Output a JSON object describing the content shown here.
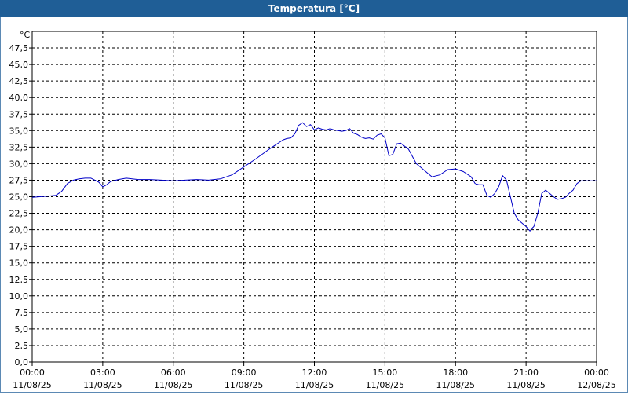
{
  "window": {
    "title": "Temperatura [°C]"
  },
  "chart_data": {
    "type": "line",
    "title": "Temperatura [°C]",
    "ylabel": "°C",
    "xlabel": "",
    "ylim": [
      0,
      50
    ],
    "y_ticks": [
      "0,0",
      "2,5",
      "5,0",
      "7,5",
      "10,0",
      "12,5",
      "15,0",
      "17,5",
      "20,0",
      "22,5",
      "25,0",
      "27,5",
      "30,0",
      "32,5",
      "35,0",
      "37,5",
      "40,0",
      "42,5",
      "45,0",
      "47,5"
    ],
    "x_ticks": [
      {
        "time": "00:00",
        "date": "11/08/25"
      },
      {
        "time": "03:00",
        "date": "11/08/25"
      },
      {
        "time": "06:00",
        "date": "11/08/25"
      },
      {
        "time": "09:00",
        "date": "11/08/25"
      },
      {
        "time": "12:00",
        "date": "11/08/25"
      },
      {
        "time": "15:00",
        "date": "11/08/25"
      },
      {
        "time": "18:00",
        "date": "11/08/25"
      },
      {
        "time": "21:00",
        "date": "11/08/25"
      },
      {
        "time": "00:00",
        "date": "12/08/25"
      }
    ],
    "grid": true,
    "series": [
      {
        "color": "#0000c8",
        "x": [
          "00:00",
          "00:20",
          "00:40",
          "01:00",
          "01:15",
          "01:30",
          "01:45",
          "02:00",
          "02:15",
          "02:30",
          "02:40",
          "02:50",
          "03:00",
          "03:10",
          "03:20",
          "03:40",
          "04:00",
          "04:30",
          "05:00",
          "05:30",
          "06:00",
          "06:30",
          "07:00",
          "07:30",
          "08:00",
          "08:30",
          "09:00",
          "09:30",
          "10:00",
          "10:20",
          "10:30",
          "10:40",
          "10:50",
          "11:00",
          "11:10",
          "11:20",
          "11:30",
          "11:40",
          "11:50",
          "12:00",
          "12:10",
          "12:20",
          "12:30",
          "12:40",
          "12:50",
          "13:00",
          "13:10",
          "13:20",
          "13:30",
          "13:40",
          "13:50",
          "14:00",
          "14:10",
          "14:20",
          "14:30",
          "14:40",
          "14:50",
          "15:00",
          "15:10",
          "15:20",
          "15:30",
          "15:40",
          "16:00",
          "16:20",
          "16:40",
          "17:00",
          "17:20",
          "17:40",
          "18:00",
          "18:20",
          "18:40",
          "18:50",
          "19:00",
          "19:10",
          "19:20",
          "19:30",
          "19:40",
          "19:50",
          "20:00",
          "20:10",
          "20:20",
          "20:30",
          "20:40",
          "20:50",
          "21:00",
          "21:10",
          "21:15",
          "21:20",
          "21:30",
          "21:40",
          "21:50",
          "22:00",
          "22:10",
          "22:20",
          "22:30",
          "22:40",
          "22:50",
          "23:00",
          "23:10",
          "23:20",
          "23:40",
          "24:00"
        ],
        "y": [
          24.9,
          25.0,
          25.1,
          25.2,
          25.8,
          27.0,
          27.5,
          27.7,
          27.8,
          27.8,
          27.5,
          27.2,
          26.5,
          26.8,
          27.3,
          27.6,
          27.8,
          27.6,
          27.6,
          27.5,
          27.4,
          27.5,
          27.6,
          27.5,
          27.7,
          28.3,
          29.5,
          30.7,
          32.0,
          32.8,
          33.2,
          33.6,
          33.8,
          33.9,
          34.5,
          35.8,
          36.2,
          35.6,
          35.9,
          35.1,
          35.4,
          35.2,
          35.1,
          35.3,
          35.1,
          35.0,
          34.9,
          35.0,
          35.3,
          34.6,
          34.4,
          34.0,
          33.8,
          33.9,
          33.7,
          34.3,
          34.5,
          33.9,
          31.2,
          31.4,
          33.0,
          33.1,
          32.2,
          30.0,
          29.0,
          28.0,
          28.3,
          29.1,
          29.2,
          28.8,
          28.0,
          27.0,
          26.8,
          26.8,
          25.2,
          24.9,
          25.5,
          26.5,
          28.2,
          27.5,
          25.0,
          22.5,
          21.5,
          21.0,
          20.5,
          19.8,
          20.2,
          20.5,
          22.5,
          25.5,
          26.0,
          25.5,
          25.0,
          24.6,
          24.7,
          24.9,
          25.5,
          26.0,
          27.0,
          27.4,
          27.4,
          27.4
        ]
      }
    ]
  }
}
